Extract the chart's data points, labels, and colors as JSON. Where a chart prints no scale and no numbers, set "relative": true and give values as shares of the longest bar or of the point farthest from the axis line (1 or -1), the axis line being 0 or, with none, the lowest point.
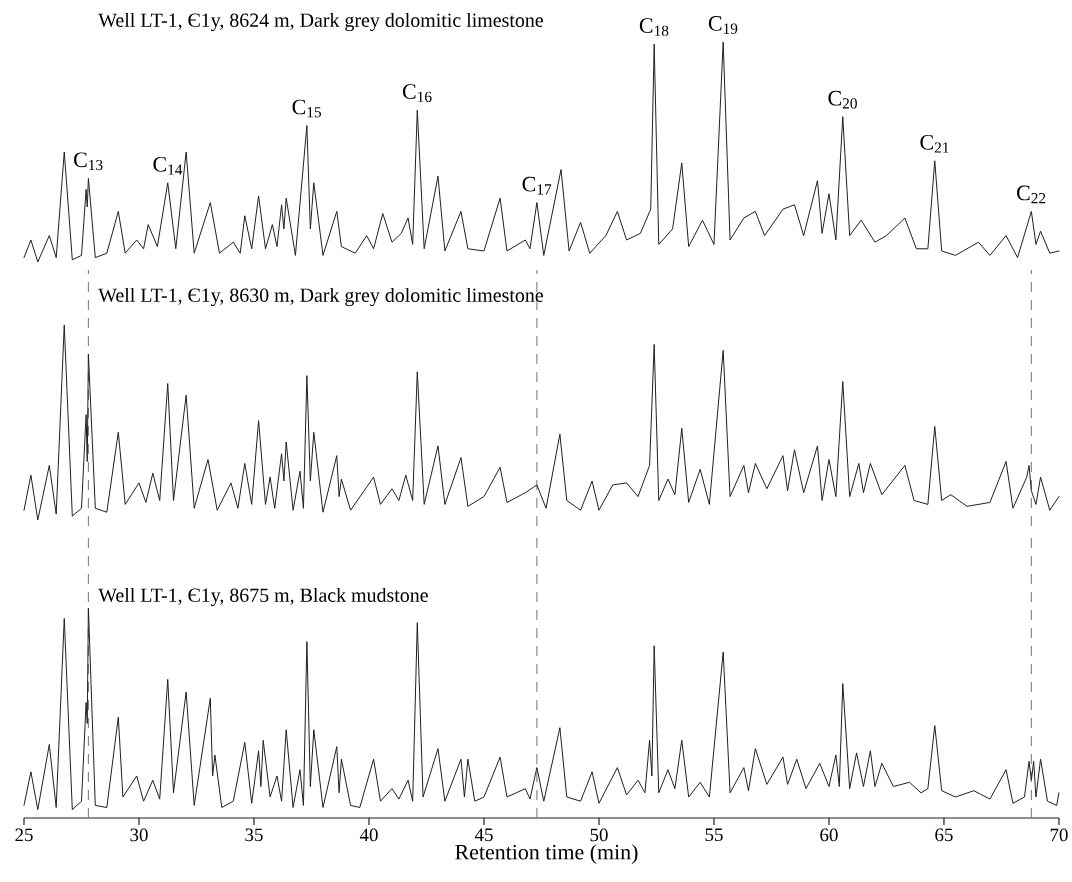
{
  "chart_data": [
    {
      "type": "line",
      "title": "Well LT-1, Є1y, 8624 m, Dark grey dolomitic limestone",
      "relative": true,
      "color": "#231f20",
      "xlim": [
        25,
        70
      ],
      "tick_labels": false,
      "x": [
        25.0,
        25.3,
        25.6,
        26.1,
        26.4,
        26.75,
        27.1,
        27.5,
        27.7,
        27.75,
        27.8,
        28.1,
        28.6,
        29.1,
        29.4,
        29.9,
        30.2,
        30.4,
        30.8,
        31.25,
        31.6,
        32.05,
        32.4,
        33.1,
        33.5,
        34.1,
        34.4,
        34.6,
        34.9,
        35.2,
        35.5,
        35.8,
        36.0,
        36.2,
        36.3,
        36.4,
        36.8,
        37.3,
        37.45,
        37.6,
        38.0,
        38.6,
        38.8,
        39.4,
        39.9,
        40.2,
        40.6,
        41.0,
        41.4,
        41.7,
        41.9,
        42.1,
        42.4,
        43.0,
        43.3,
        44.0,
        44.3,
        45.0,
        45.7,
        46.0,
        46.8,
        47.0,
        47.3,
        47.6,
        48.35,
        48.7,
        49.2,
        49.6,
        50.3,
        50.8,
        51.2,
        51.8,
        52.25,
        52.4,
        52.6,
        53.2,
        53.6,
        53.9,
        54.5,
        55.0,
        55.4,
        55.7,
        56.3,
        56.8,
        57.2,
        58.0,
        58.5,
        58.9,
        59.5,
        59.7,
        60.0,
        60.3,
        60.6,
        60.9,
        61.4,
        62.0,
        62.5,
        63.3,
        63.8,
        64.3,
        64.6,
        64.9,
        65.5,
        66.5,
        67.0,
        67.7,
        68.2,
        68.8,
        69.0,
        69.2,
        69.6,
        70.0
      ],
      "values": [
        0.02,
        0.1,
        0.0,
        0.12,
        0.02,
        0.5,
        0.01,
        0.03,
        0.33,
        0.25,
        0.38,
        0.02,
        0.04,
        0.23,
        0.04,
        0.1,
        0.06,
        0.17,
        0.07,
        0.36,
        0.06,
        0.5,
        0.04,
        0.27,
        0.04,
        0.09,
        0.04,
        0.21,
        0.06,
        0.3,
        0.06,
        0.17,
        0.07,
        0.26,
        0.15,
        0.29,
        0.03,
        0.62,
        0.15,
        0.36,
        0.03,
        0.23,
        0.07,
        0.04,
        0.12,
        0.06,
        0.22,
        0.09,
        0.13,
        0.2,
        0.08,
        0.69,
        0.06,
        0.39,
        0.05,
        0.23,
        0.06,
        0.05,
        0.29,
        0.05,
        0.1,
        0.06,
        0.27,
        0.03,
        0.42,
        0.05,
        0.18,
        0.04,
        0.12,
        0.23,
        0.1,
        0.13,
        0.24,
        0.99,
        0.08,
        0.15,
        0.45,
        0.07,
        0.19,
        0.08,
        1.0,
        0.1,
        0.2,
        0.23,
        0.12,
        0.24,
        0.26,
        0.12,
        0.37,
        0.13,
        0.31,
        0.1,
        0.66,
        0.12,
        0.19,
        0.09,
        0.12,
        0.2,
        0.06,
        0.06,
        0.46,
        0.05,
        0.03,
        0.09,
        0.03,
        0.12,
        0.02,
        0.23,
        0.08,
        0.14,
        0.04,
        0.05
      ],
      "annotations": [
        {
          "text": "C$_{13}$",
          "x": 27.8,
          "y": 0.38
        },
        {
          "text": "C$_{14}$",
          "x": 31.25,
          "y": 0.36
        },
        {
          "text": "C$_{15}$",
          "x": 37.3,
          "y": 0.62
        },
        {
          "text": "C$_{16}$",
          "x": 42.1,
          "y": 0.69
        },
        {
          "text": "C$_{17}$",
          "x": 47.3,
          "y": 0.27
        },
        {
          "text": "C$_{18}$",
          "x": 52.4,
          "y": 0.99
        },
        {
          "text": "C$_{19}$",
          "x": 55.4,
          "y": 1.0
        },
        {
          "text": "C$_{20}$",
          "x": 60.6,
          "y": 0.66
        },
        {
          "text": "C$_{21}$",
          "x": 64.6,
          "y": 0.46
        },
        {
          "text": "C$_{22}$",
          "x": 68.8,
          "y": 0.23
        }
      ]
    },
    {
      "type": "line",
      "title": "Well LT-1, Є1y, 8630 m, Dark grey dolomitic limestone",
      "relative": true,
      "color": "#231f20",
      "xlim": [
        25,
        70
      ],
      "tick_labels": false,
      "x": [
        25.0,
        25.3,
        25.6,
        26.1,
        26.4,
        26.75,
        27.1,
        27.5,
        27.7,
        27.75,
        27.8,
        28.1,
        28.6,
        29.1,
        29.4,
        30.0,
        30.3,
        30.6,
        30.9,
        31.25,
        31.5,
        32.05,
        32.4,
        33.0,
        33.4,
        34.0,
        34.3,
        34.6,
        34.9,
        35.2,
        35.5,
        35.7,
        35.9,
        36.2,
        36.3,
        36.4,
        36.7,
        37.0,
        37.15,
        37.3,
        37.45,
        37.6,
        38.0,
        38.6,
        38.7,
        38.8,
        39.2,
        40.2,
        40.5,
        41.0,
        41.3,
        41.6,
        41.9,
        42.1,
        42.4,
        43.0,
        43.3,
        44.0,
        44.3,
        45.0,
        45.7,
        46.0,
        46.8,
        47.3,
        47.7,
        48.3,
        48.6,
        49.2,
        49.7,
        50.0,
        50.6,
        51.2,
        51.7,
        52.2,
        52.4,
        52.6,
        53.0,
        53.3,
        53.6,
        53.9,
        54.4,
        54.8,
        55.4,
        55.7,
        56.3,
        56.5,
        56.8,
        57.3,
        58.0,
        58.2,
        58.5,
        58.9,
        59.5,
        59.7,
        60.0,
        60.3,
        60.6,
        60.9,
        61.3,
        61.5,
        61.8,
        62.3,
        63.3,
        63.7,
        64.3,
        64.6,
        64.9,
        65.3,
        66.0,
        67.0,
        67.7,
        68.0,
        68.6,
        68.7,
        68.8,
        69.0,
        69.2,
        69.6,
        70.0
      ],
      "values": [
        0.05,
        0.23,
        0.0,
        0.28,
        0.03,
        1.0,
        0.02,
        0.06,
        0.54,
        0.3,
        0.85,
        0.06,
        0.04,
        0.45,
        0.08,
        0.19,
        0.09,
        0.24,
        0.1,
        0.7,
        0.1,
        0.64,
        0.06,
        0.31,
        0.05,
        0.19,
        0.06,
        0.29,
        0.08,
        0.51,
        0.08,
        0.22,
        0.06,
        0.34,
        0.2,
        0.4,
        0.05,
        0.25,
        0.06,
        0.74,
        0.2,
        0.45,
        0.04,
        0.33,
        0.12,
        0.21,
        0.05,
        0.22,
        0.08,
        0.16,
        0.1,
        0.23,
        0.1,
        0.76,
        0.08,
        0.38,
        0.08,
        0.32,
        0.07,
        0.12,
        0.27,
        0.09,
        0.14,
        0.18,
        0.06,
        0.44,
        0.1,
        0.05,
        0.2,
        0.05,
        0.18,
        0.19,
        0.12,
        0.28,
        0.9,
        0.1,
        0.21,
        0.13,
        0.47,
        0.09,
        0.26,
        0.08,
        0.87,
        0.12,
        0.28,
        0.14,
        0.29,
        0.16,
        0.33,
        0.15,
        0.36,
        0.14,
        0.38,
        0.1,
        0.31,
        0.12,
        0.71,
        0.12,
        0.29,
        0.14,
        0.29,
        0.13,
        0.28,
        0.1,
        0.08,
        0.48,
        0.1,
        0.13,
        0.07,
        0.09,
        0.3,
        0.06,
        0.22,
        0.28,
        0.15,
        0.08,
        0.22,
        0.05,
        0.12
      ],
      "ref_lines": [
        {
          "axis": "x",
          "value": 27.8,
          "color": "#808080",
          "line_style": "dashed"
        },
        {
          "axis": "x",
          "value": 47.3,
          "color": "#808080",
          "line_style": "dashed"
        },
        {
          "axis": "x",
          "value": 68.8,
          "color": "#808080",
          "line_style": "dashed"
        }
      ]
    },
    {
      "type": "line",
      "title": "Well LT-1, Є1y, 8675 m, Black mudstone",
      "xlabel": "Retention time (min)",
      "relative": true,
      "color": "#231f20",
      "xlim": [
        25,
        70
      ],
      "xticks": [
        25,
        30,
        35,
        40,
        45,
        50,
        55,
        60,
        65,
        70
      ],
      "tick_labels": "x",
      "x": [
        25.0,
        25.3,
        25.6,
        26.1,
        26.4,
        26.75,
        27.1,
        27.5,
        27.7,
        27.75,
        27.8,
        28.1,
        28.6,
        29.1,
        29.3,
        29.9,
        30.2,
        30.6,
        30.9,
        31.25,
        31.5,
        32.05,
        32.4,
        33.1,
        33.2,
        33.3,
        33.6,
        34.1,
        34.6,
        34.9,
        35.2,
        35.3,
        35.4,
        35.7,
        36.0,
        36.2,
        36.4,
        36.7,
        37.0,
        37.15,
        37.3,
        37.45,
        37.6,
        38.0,
        38.6,
        38.7,
        38.8,
        39.2,
        39.6,
        40.2,
        40.5,
        41.0,
        41.3,
        41.7,
        41.9,
        42.1,
        42.35,
        43.0,
        43.3,
        44.0,
        44.15,
        44.3,
        44.6,
        45.0,
        45.7,
        46.0,
        46.8,
        47.0,
        47.3,
        47.6,
        48.3,
        48.6,
        49.2,
        49.7,
        50.0,
        50.8,
        51.2,
        51.7,
        52.0,
        52.2,
        52.3,
        52.4,
        52.6,
        53.0,
        53.3,
        53.6,
        53.9,
        54.4,
        54.8,
        55.4,
        55.7,
        56.3,
        56.5,
        56.8,
        57.3,
        58.0,
        58.2,
        58.6,
        59.0,
        59.6,
        60.0,
        60.3,
        60.45,
        60.6,
        60.9,
        61.2,
        61.5,
        61.8,
        62.0,
        62.3,
        62.8,
        63.5,
        64.0,
        64.3,
        64.6,
        64.9,
        65.5,
        66.3,
        67.0,
        67.7,
        68.0,
        68.5,
        68.7,
        68.8,
        68.9,
        69.0,
        69.2,
        69.5,
        69.9,
        70.0
      ],
      "values": [
        0.06,
        0.22,
        0.04,
        0.35,
        0.05,
        0.95,
        0.04,
        0.08,
        0.55,
        0.45,
        1.0,
        0.06,
        0.05,
        0.48,
        0.1,
        0.2,
        0.08,
        0.18,
        0.09,
        0.66,
        0.12,
        0.6,
        0.06,
        0.57,
        0.2,
        0.3,
        0.05,
        0.08,
        0.36,
        0.07,
        0.32,
        0.15,
        0.37,
        0.1,
        0.2,
        0.08,
        0.42,
        0.05,
        0.23,
        0.06,
        0.84,
        0.15,
        0.42,
        0.05,
        0.34,
        0.12,
        0.28,
        0.06,
        0.05,
        0.28,
        0.08,
        0.14,
        0.09,
        0.18,
        0.08,
        0.93,
        0.1,
        0.33,
        0.08,
        0.28,
        0.1,
        0.28,
        0.08,
        0.1,
        0.29,
        0.1,
        0.14,
        0.09,
        0.24,
        0.08,
        0.43,
        0.1,
        0.08,
        0.22,
        0.07,
        0.24,
        0.11,
        0.18,
        0.12,
        0.37,
        0.2,
        0.82,
        0.12,
        0.23,
        0.14,
        0.37,
        0.1,
        0.17,
        0.1,
        0.79,
        0.12,
        0.24,
        0.13,
        0.33,
        0.16,
        0.29,
        0.16,
        0.28,
        0.14,
        0.26,
        0.15,
        0.3,
        0.15,
        0.64,
        0.14,
        0.31,
        0.15,
        0.32,
        0.15,
        0.26,
        0.15,
        0.17,
        0.12,
        0.14,
        0.44,
        0.13,
        0.1,
        0.13,
        0.09,
        0.23,
        0.07,
        0.1,
        0.27,
        0.18,
        0.27,
        0.1,
        0.28,
        0.08,
        0.06,
        0.12
      ],
      "ref_lines": [
        {
          "axis": "x",
          "value": 27.8,
          "color": "#808080",
          "line_style": "dashed"
        },
        {
          "axis": "x",
          "value": 47.3,
          "color": "#808080",
          "line_style": "dashed"
        },
        {
          "axis": "x",
          "value": 68.8,
          "color": "#808080",
          "line_style": "dashed"
        }
      ]
    }
  ]
}
